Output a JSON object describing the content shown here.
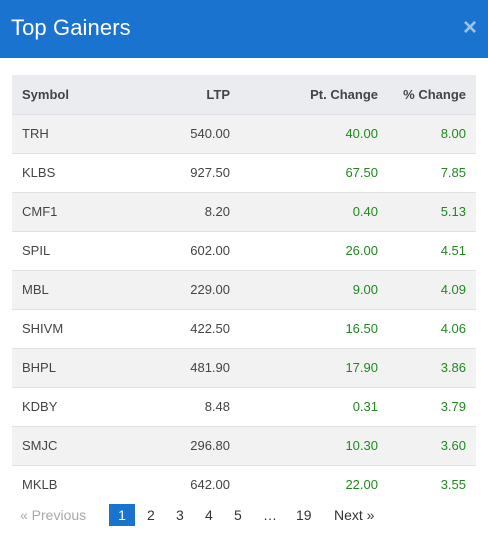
{
  "modal": {
    "title": "Top Gainers",
    "close_symbol": "×"
  },
  "table": {
    "headers": {
      "symbol": "Symbol",
      "ltp": "LTP",
      "pt_change": "Pt. Change",
      "pct_change": "% Change"
    },
    "rows": [
      {
        "symbol": "TRH",
        "ltp": "540.00",
        "pt_change": "40.00",
        "pct_change": "8.00"
      },
      {
        "symbol": "KLBS",
        "ltp": "927.50",
        "pt_change": "67.50",
        "pct_change": "7.85"
      },
      {
        "symbol": "CMF1",
        "ltp": "8.20",
        "pt_change": "0.40",
        "pct_change": "5.13"
      },
      {
        "symbol": "SPIL",
        "ltp": "602.00",
        "pt_change": "26.00",
        "pct_change": "4.51"
      },
      {
        "symbol": "MBL",
        "ltp": "229.00",
        "pt_change": "9.00",
        "pct_change": "4.09"
      },
      {
        "symbol": "SHIVM",
        "ltp": "422.50",
        "pt_change": "16.50",
        "pct_change": "4.06"
      },
      {
        "symbol": "BHPL",
        "ltp": "481.90",
        "pt_change": "17.90",
        "pct_change": "3.86"
      },
      {
        "symbol": "KDBY",
        "ltp": "8.48",
        "pt_change": "0.31",
        "pct_change": "3.79"
      },
      {
        "symbol": "SMJC",
        "ltp": "296.80",
        "pt_change": "10.30",
        "pct_change": "3.60"
      },
      {
        "symbol": "MKLB",
        "ltp": "642.00",
        "pt_change": "22.00",
        "pct_change": "3.55"
      }
    ]
  },
  "pagination": {
    "previous": "«   Previous",
    "pages": [
      "1",
      "2",
      "3",
      "4",
      "5"
    ],
    "ellipsis": "…",
    "last_page": "19",
    "next": "Next   »",
    "current": "1"
  },
  "colors": {
    "header_bg": "#1a73cf",
    "positive": "#1e8a1e",
    "row_alt": "#f2f2f2"
  }
}
